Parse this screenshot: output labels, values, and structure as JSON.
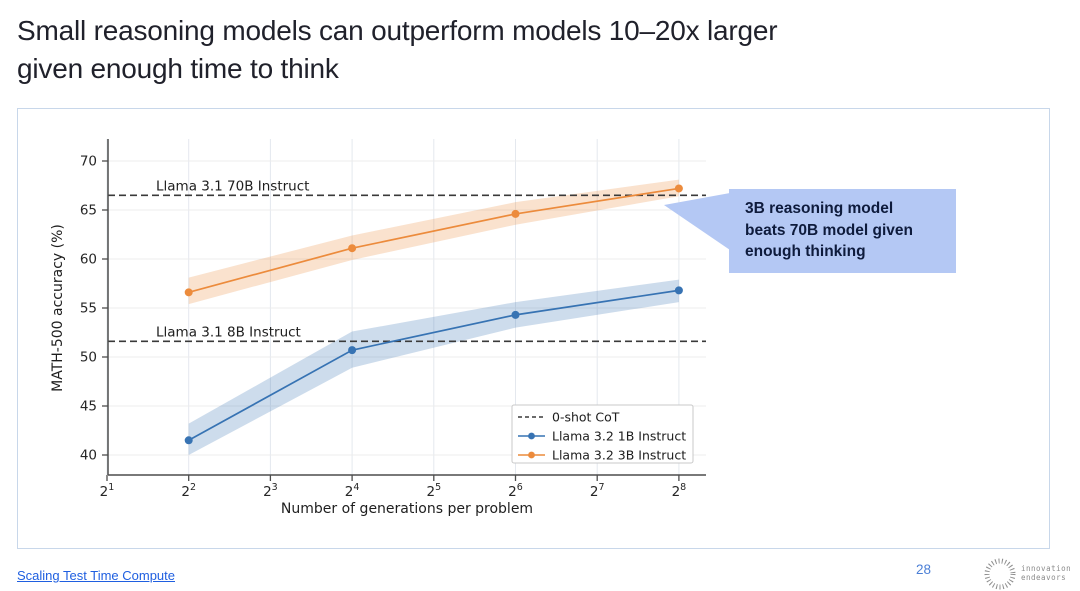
{
  "slide": {
    "title_line1": "Small reasoning models can outperform models 10–20x larger",
    "title_line2": "given enough time to think"
  },
  "callout": {
    "line1": "3B reasoning model",
    "line2": "beats 70B model given",
    "line3": "enough thinking"
  },
  "footer": {
    "source_link": "Scaling Test Time Compute",
    "page_number": "28",
    "logo_line1": "innovation",
    "logo_line2": "endeavors"
  },
  "colors": {
    "accent_blue_line": "#3773b3",
    "accent_orange_line": "#ec8b3c",
    "reference_dash": "#3a3a3a",
    "callout_bg": "#b4c8f4",
    "callout_text": "#0e1b3c",
    "panel_border": "#c8d7ea",
    "link_blue": "#1f5fe0",
    "page_number_blue": "#4b7fd6",
    "logo_gray": "#8b8b8b"
  },
  "chart_data": {
    "type": "line",
    "title": "",
    "xlabel": "Number of generations per problem",
    "ylabel": "MATH-500 accuracy (%)",
    "x_scale": "log2",
    "x_ticks": [
      2,
      4,
      8,
      16,
      32,
      64,
      128,
      256
    ],
    "x_tick_exponents": [
      1,
      2,
      3,
      4,
      5,
      6,
      7,
      8
    ],
    "y_ticks": [
      40,
      45,
      50,
      55,
      60,
      65,
      70
    ],
    "ylim": [
      38,
      72.2
    ],
    "grid": true,
    "legend_position": "lower right",
    "series": [
      {
        "name": "Llama 3.2 1B Instruct",
        "color": "#3773b3",
        "x_exponents": [
          2,
          4,
          6,
          8
        ],
        "x": [
          4,
          16,
          64,
          256
        ],
        "values": [
          41.5,
          50.7,
          54.3,
          56.8
        ],
        "band_low": [
          40.0,
          48.9,
          53.0,
          55.6
        ],
        "band_high": [
          43.2,
          52.6,
          55.6,
          57.9
        ]
      },
      {
        "name": "Llama 3.2 3B Instruct",
        "color": "#ec8b3c",
        "x_exponents": [
          2,
          4,
          6,
          8
        ],
        "x": [
          4,
          16,
          64,
          256
        ],
        "values": [
          56.6,
          61.1,
          64.6,
          67.2
        ],
        "band_low": [
          55.4,
          59.9,
          63.5,
          66.4
        ],
        "band_high": [
          58.1,
          62.4,
          65.8,
          68.1
        ]
      }
    ],
    "reference_lines": [
      {
        "label": "Llama 3.1 70B Instruct",
        "value": 66.5,
        "style": "dashed",
        "color": "#3a3a3a"
      },
      {
        "label": "Llama 3.1 8B Instruct",
        "value": 51.6,
        "style": "dashed",
        "color": "#3a3a3a"
      }
    ],
    "legend": [
      {
        "label": "0-shot CoT",
        "type": "dashed",
        "color": "#3a3a3a"
      },
      {
        "label": "Llama 3.2 1B Instruct",
        "type": "line-marker",
        "color": "#3773b3"
      },
      {
        "label": "Llama 3.2 3B Instruct",
        "type": "line-marker",
        "color": "#ec8b3c"
      }
    ]
  }
}
